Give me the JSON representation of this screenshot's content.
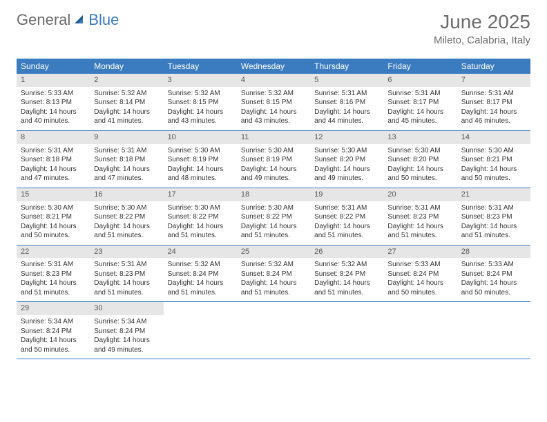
{
  "brand": {
    "general": "General",
    "blue": "Blue"
  },
  "title": {
    "month": "June 2025",
    "location": "Mileto, Calabria, Italy"
  },
  "colors": {
    "header_bg": "#3b7bbf",
    "header_text": "#ffffff",
    "daynum_bg": "#e6e6e6",
    "text": "#333333",
    "muted": "#6b6b6b",
    "logo_blue": "#3b7bbf",
    "week_border": "#3b7bbf",
    "page_bg": "#ffffff"
  },
  "weekdays": [
    "Sunday",
    "Monday",
    "Tuesday",
    "Wednesday",
    "Thursday",
    "Friday",
    "Saturday"
  ],
  "weeks": [
    [
      {
        "n": "1",
        "sr": "Sunrise: 5:33 AM",
        "ss": "Sunset: 8:13 PM",
        "d1": "Daylight: 14 hours",
        "d2": "and 40 minutes."
      },
      {
        "n": "2",
        "sr": "Sunrise: 5:32 AM",
        "ss": "Sunset: 8:14 PM",
        "d1": "Daylight: 14 hours",
        "d2": "and 41 minutes."
      },
      {
        "n": "3",
        "sr": "Sunrise: 5:32 AM",
        "ss": "Sunset: 8:15 PM",
        "d1": "Daylight: 14 hours",
        "d2": "and 43 minutes."
      },
      {
        "n": "4",
        "sr": "Sunrise: 5:32 AM",
        "ss": "Sunset: 8:15 PM",
        "d1": "Daylight: 14 hours",
        "d2": "and 43 minutes."
      },
      {
        "n": "5",
        "sr": "Sunrise: 5:31 AM",
        "ss": "Sunset: 8:16 PM",
        "d1": "Daylight: 14 hours",
        "d2": "and 44 minutes."
      },
      {
        "n": "6",
        "sr": "Sunrise: 5:31 AM",
        "ss": "Sunset: 8:17 PM",
        "d1": "Daylight: 14 hours",
        "d2": "and 45 minutes."
      },
      {
        "n": "7",
        "sr": "Sunrise: 5:31 AM",
        "ss": "Sunset: 8:17 PM",
        "d1": "Daylight: 14 hours",
        "d2": "and 46 minutes."
      }
    ],
    [
      {
        "n": "8",
        "sr": "Sunrise: 5:31 AM",
        "ss": "Sunset: 8:18 PM",
        "d1": "Daylight: 14 hours",
        "d2": "and 47 minutes."
      },
      {
        "n": "9",
        "sr": "Sunrise: 5:31 AM",
        "ss": "Sunset: 8:18 PM",
        "d1": "Daylight: 14 hours",
        "d2": "and 47 minutes."
      },
      {
        "n": "10",
        "sr": "Sunrise: 5:30 AM",
        "ss": "Sunset: 8:19 PM",
        "d1": "Daylight: 14 hours",
        "d2": "and 48 minutes."
      },
      {
        "n": "11",
        "sr": "Sunrise: 5:30 AM",
        "ss": "Sunset: 8:19 PM",
        "d1": "Daylight: 14 hours",
        "d2": "and 49 minutes."
      },
      {
        "n": "12",
        "sr": "Sunrise: 5:30 AM",
        "ss": "Sunset: 8:20 PM",
        "d1": "Daylight: 14 hours",
        "d2": "and 49 minutes."
      },
      {
        "n": "13",
        "sr": "Sunrise: 5:30 AM",
        "ss": "Sunset: 8:20 PM",
        "d1": "Daylight: 14 hours",
        "d2": "and 50 minutes."
      },
      {
        "n": "14",
        "sr": "Sunrise: 5:30 AM",
        "ss": "Sunset: 8:21 PM",
        "d1": "Daylight: 14 hours",
        "d2": "and 50 minutes."
      }
    ],
    [
      {
        "n": "15",
        "sr": "Sunrise: 5:30 AM",
        "ss": "Sunset: 8:21 PM",
        "d1": "Daylight: 14 hours",
        "d2": "and 50 minutes."
      },
      {
        "n": "16",
        "sr": "Sunrise: 5:30 AM",
        "ss": "Sunset: 8:22 PM",
        "d1": "Daylight: 14 hours",
        "d2": "and 51 minutes."
      },
      {
        "n": "17",
        "sr": "Sunrise: 5:30 AM",
        "ss": "Sunset: 8:22 PM",
        "d1": "Daylight: 14 hours",
        "d2": "and 51 minutes."
      },
      {
        "n": "18",
        "sr": "Sunrise: 5:30 AM",
        "ss": "Sunset: 8:22 PM",
        "d1": "Daylight: 14 hours",
        "d2": "and 51 minutes."
      },
      {
        "n": "19",
        "sr": "Sunrise: 5:31 AM",
        "ss": "Sunset: 8:22 PM",
        "d1": "Daylight: 14 hours",
        "d2": "and 51 minutes."
      },
      {
        "n": "20",
        "sr": "Sunrise: 5:31 AM",
        "ss": "Sunset: 8:23 PM",
        "d1": "Daylight: 14 hours",
        "d2": "and 51 minutes."
      },
      {
        "n": "21",
        "sr": "Sunrise: 5:31 AM",
        "ss": "Sunset: 8:23 PM",
        "d1": "Daylight: 14 hours",
        "d2": "and 51 minutes."
      }
    ],
    [
      {
        "n": "22",
        "sr": "Sunrise: 5:31 AM",
        "ss": "Sunset: 8:23 PM",
        "d1": "Daylight: 14 hours",
        "d2": "and 51 minutes."
      },
      {
        "n": "23",
        "sr": "Sunrise: 5:31 AM",
        "ss": "Sunset: 8:23 PM",
        "d1": "Daylight: 14 hours",
        "d2": "and 51 minutes."
      },
      {
        "n": "24",
        "sr": "Sunrise: 5:32 AM",
        "ss": "Sunset: 8:24 PM",
        "d1": "Daylight: 14 hours",
        "d2": "and 51 minutes."
      },
      {
        "n": "25",
        "sr": "Sunrise: 5:32 AM",
        "ss": "Sunset: 8:24 PM",
        "d1": "Daylight: 14 hours",
        "d2": "and 51 minutes."
      },
      {
        "n": "26",
        "sr": "Sunrise: 5:32 AM",
        "ss": "Sunset: 8:24 PM",
        "d1": "Daylight: 14 hours",
        "d2": "and 51 minutes."
      },
      {
        "n": "27",
        "sr": "Sunrise: 5:33 AM",
        "ss": "Sunset: 8:24 PM",
        "d1": "Daylight: 14 hours",
        "d2": "and 50 minutes."
      },
      {
        "n": "28",
        "sr": "Sunrise: 5:33 AM",
        "ss": "Sunset: 8:24 PM",
        "d1": "Daylight: 14 hours",
        "d2": "and 50 minutes."
      }
    ],
    [
      {
        "n": "29",
        "sr": "Sunrise: 5:34 AM",
        "ss": "Sunset: 8:24 PM",
        "d1": "Daylight: 14 hours",
        "d2": "and 50 minutes."
      },
      {
        "n": "30",
        "sr": "Sunrise: 5:34 AM",
        "ss": "Sunset: 8:24 PM",
        "d1": "Daylight: 14 hours",
        "d2": "and 49 minutes."
      },
      null,
      null,
      null,
      null,
      null
    ]
  ]
}
